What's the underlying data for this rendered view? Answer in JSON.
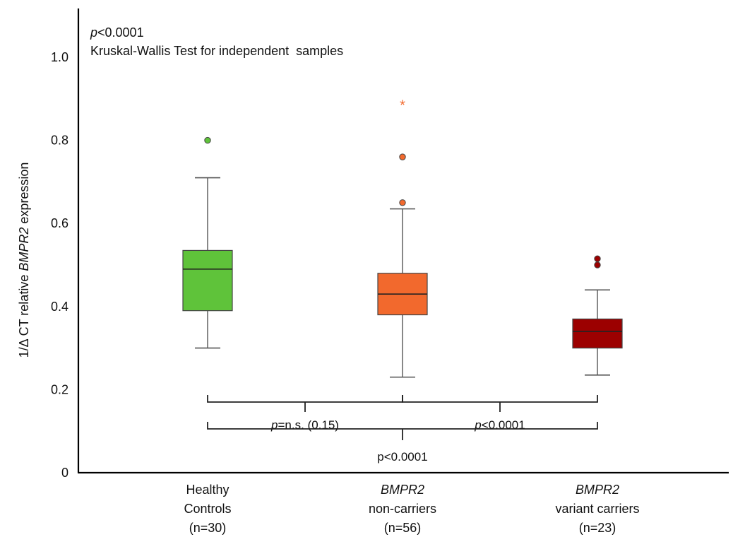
{
  "chart_data": {
    "type": "box",
    "ylabel_parts": [
      "1/Δ CT relative ",
      "BMPR2",
      " expression"
    ],
    "ylim": [
      0,
      1.1
    ],
    "yticks": [
      {
        "value": 0,
        "label": "0"
      },
      {
        "value": 0.2,
        "label": "0.2"
      },
      {
        "value": 0.4,
        "label": "0.4"
      },
      {
        "value": 0.6,
        "label": "0.6"
      },
      {
        "value": 0.8,
        "label": "0.8"
      },
      {
        "value": 1.0,
        "label": "1.0"
      }
    ],
    "annotation": {
      "p_italic": "p",
      "p_rest": "<0.0001",
      "test": "Kruskal-Wallis Test for independent  samples"
    },
    "groups": [
      {
        "label_italic": "",
        "label_line1": "Healthy",
        "label_line2": "Controls",
        "label_line3": "(n=30)",
        "color": "#5fc33a",
        "whisker_low": 0.3,
        "q1": 0.39,
        "median": 0.49,
        "q3": 0.535,
        "whisker_high": 0.71,
        "outliers": [
          0.8
        ],
        "extremes": []
      },
      {
        "label_italic": "BMPR2",
        "label_line1": "",
        "label_line2": "non-carriers",
        "label_line3": "(n=56)",
        "color": "#f2692d",
        "whisker_low": 0.23,
        "q1": 0.38,
        "median": 0.43,
        "q3": 0.48,
        "whisker_high": 0.635,
        "outliers": [
          0.65,
          0.76
        ],
        "extremes": [
          0.89
        ]
      },
      {
        "label_italic": "BMPR2",
        "label_line1": "",
        "label_line2": "variant carriers",
        "label_line3": "(n=23)",
        "color": "#9c0000",
        "whisker_low": 0.235,
        "q1": 0.3,
        "median": 0.34,
        "q3": 0.37,
        "whisker_high": 0.44,
        "outliers": [
          0.5,
          0.515
        ],
        "extremes": []
      }
    ],
    "comparisons": [
      {
        "from": 0,
        "to": 1,
        "p_italic": "p",
        "p_rest": "=n.s. (0.15)"
      },
      {
        "from": 1,
        "to": 2,
        "p_italic": "p",
        "p_rest": "<0.0001"
      },
      {
        "from": 0,
        "to": 2,
        "p_italic": "",
        "p_rest": "p<0.0001"
      }
    ],
    "extreme_marker": "*"
  }
}
